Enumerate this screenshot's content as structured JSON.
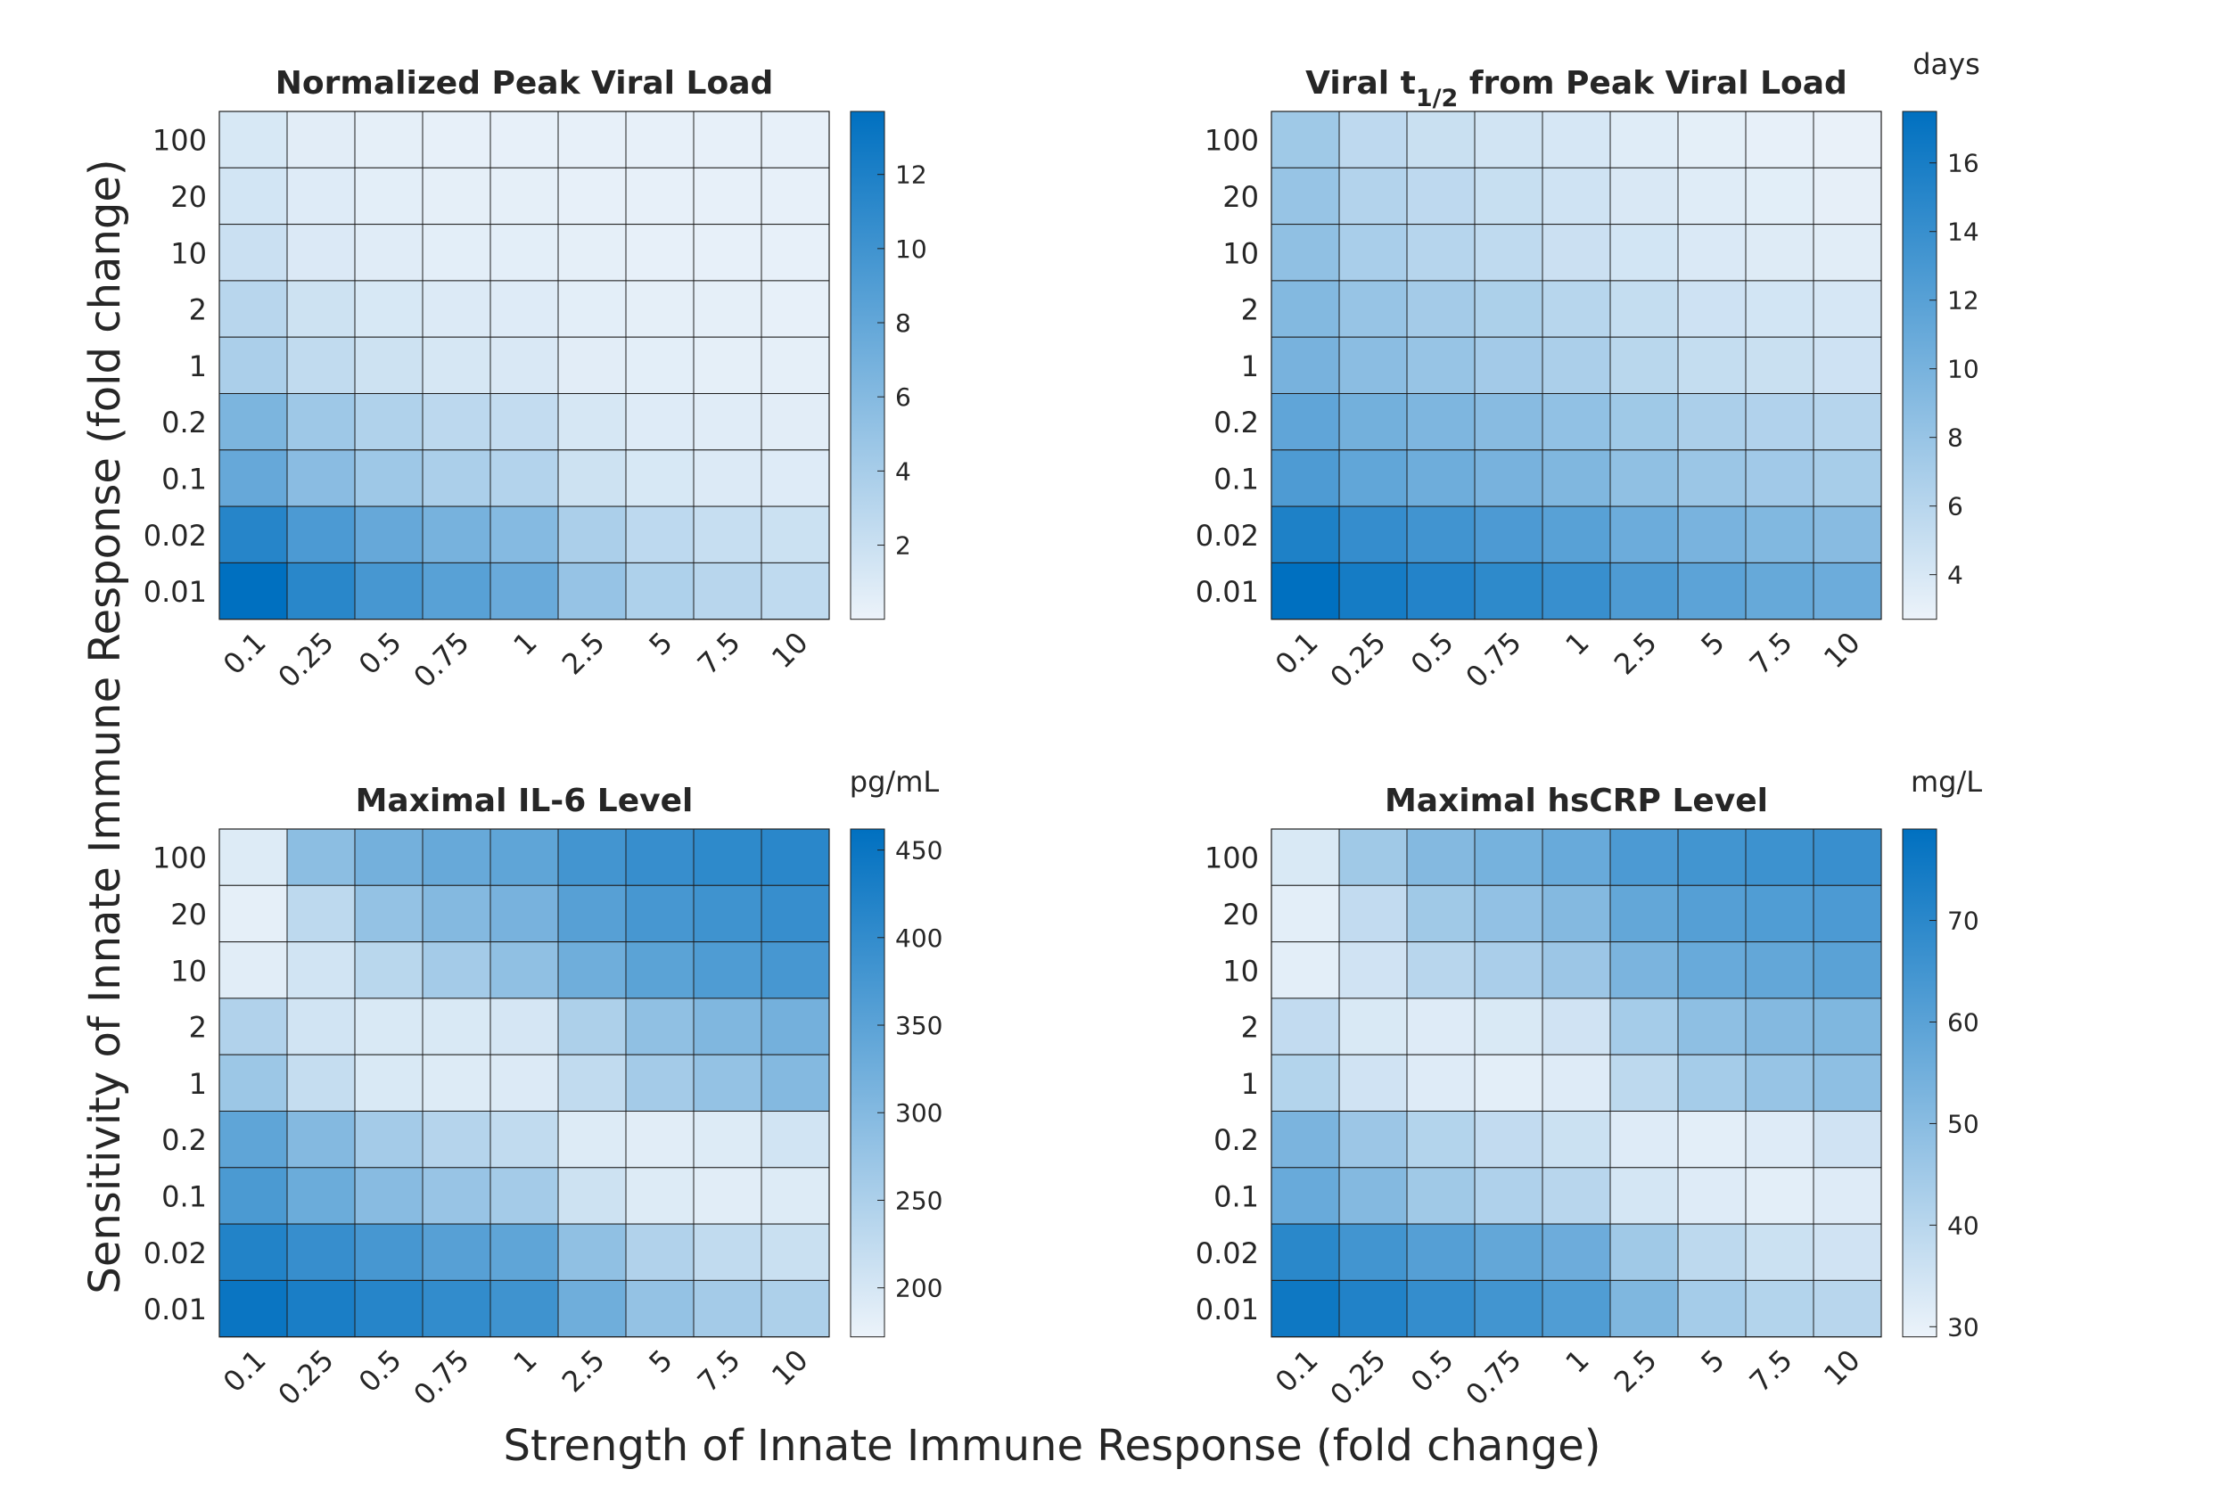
{
  "figure": {
    "ylabel": "Sensitivity of Innate Immune Response (fold change)",
    "xlabel": "Strength of Innate Immune Response (fold change)"
  },
  "chart_data": [
    {
      "type": "heatmap",
      "title": "Normalized Peak Viral Load",
      "title_sub": "",
      "title_after": "",
      "unit": "",
      "x_categories": [
        "0.1",
        "0.25",
        "0.5",
        "0.75",
        "1",
        "2.5",
        "5",
        "7.5",
        "10"
      ],
      "y_categories": [
        "100",
        "20",
        "10",
        "2",
        "1",
        "0.2",
        "0.1",
        "0.02",
        "0.01"
      ],
      "colorbar_range": [
        0,
        13.7
      ],
      "colorbar_ticks": [
        2,
        4,
        6,
        8,
        10,
        12
      ],
      "colormap": [
        "#ECF3FA",
        "#0070C0"
      ],
      "values": [
        [
          1.2,
          0.6,
          0.4,
          0.3,
          0.3,
          0.3,
          0.3,
          0.3,
          0.3
        ],
        [
          1.5,
          0.8,
          0.5,
          0.4,
          0.4,
          0.3,
          0.3,
          0.3,
          0.3
        ],
        [
          2.0,
          1.0,
          0.7,
          0.5,
          0.5,
          0.4,
          0.3,
          0.3,
          0.3
        ],
        [
          3.0,
          1.8,
          1.2,
          0.9,
          0.8,
          0.5,
          0.4,
          0.4,
          0.3
        ],
        [
          3.8,
          2.5,
          1.8,
          1.3,
          1.1,
          0.6,
          0.5,
          0.4,
          0.4
        ],
        [
          6.5,
          4.5,
          3.5,
          2.8,
          2.4,
          1.3,
          0.8,
          0.7,
          0.6
        ],
        [
          7.8,
          5.7,
          4.5,
          3.8,
          3.3,
          1.8,
          1.2,
          0.9,
          0.8
        ],
        [
          11.5,
          9.3,
          7.8,
          6.8,
          6.0,
          3.8,
          2.7,
          2.2,
          1.9
        ],
        [
          13.7,
          11.3,
          9.6,
          8.6,
          7.6,
          5.0,
          3.6,
          3.0,
          2.6
        ]
      ]
    },
    {
      "type": "heatmap",
      "title": "Viral t",
      "title_sub": "1/2",
      "title_after": " from Peak Viral Load",
      "unit": "days",
      "x_categories": [
        "0.1",
        "0.25",
        "0.5",
        "0.75",
        "1",
        "2.5",
        "5",
        "7.5",
        "10"
      ],
      "y_categories": [
        "100",
        "20",
        "10",
        "2",
        "1",
        "0.2",
        "0.1",
        "0.02",
        "0.01"
      ],
      "colorbar_range": [
        2.7,
        17.5
      ],
      "colorbar_ticks": [
        4,
        6,
        8,
        10,
        12,
        14,
        16
      ],
      "colormap": [
        "#ECF3FA",
        "#0070C0"
      ],
      "values": [
        [
          7.5,
          5.6,
          4.9,
          4.4,
          4.1,
          3.5,
          3.2,
          3.0,
          2.9
        ],
        [
          8.0,
          6.3,
          5.6,
          5.0,
          4.5,
          3.9,
          3.5,
          3.3,
          3.1
        ],
        [
          8.5,
          6.9,
          6.1,
          5.5,
          4.8,
          4.3,
          3.8,
          3.6,
          3.4
        ],
        [
          9.3,
          8.0,
          7.2,
          6.7,
          6.0,
          5.2,
          4.6,
          4.3,
          4.1
        ],
        [
          10.0,
          8.8,
          8.0,
          7.3,
          6.8,
          5.9,
          5.2,
          4.9,
          4.6
        ],
        [
          11.5,
          10.3,
          9.6,
          9.0,
          8.4,
          7.5,
          6.8,
          6.4,
          6.1
        ],
        [
          12.6,
          11.4,
          10.6,
          10.0,
          9.5,
          8.5,
          7.8,
          7.4,
          7.0
        ],
        [
          15.6,
          14.2,
          13.4,
          12.7,
          12.0,
          10.7,
          9.9,
          9.4,
          9.0
        ],
        [
          17.5,
          16.2,
          15.3,
          14.6,
          14.0,
          12.6,
          11.7,
          11.1,
          10.7
        ]
      ]
    },
    {
      "type": "heatmap",
      "title": "Maximal IL-6 Level",
      "title_sub": "",
      "title_after": "",
      "unit": "pg/mL",
      "x_categories": [
        "0.1",
        "0.25",
        "0.5",
        "0.75",
        "1",
        "2.5",
        "5",
        "7.5",
        "10"
      ],
      "y_categories": [
        "100",
        "20",
        "10",
        "2",
        "1",
        "0.2",
        "0.1",
        "0.02",
        "0.01"
      ],
      "colorbar_range": [
        172,
        462
      ],
      "colorbar_ticks": [
        200,
        250,
        300,
        350,
        400,
        450
      ],
      "colormap": [
        "#ECF3FA",
        "#0070C0"
      ],
      "values": [
        [
          190,
          290,
          320,
          335,
          345,
          380,
          395,
          405,
          410
        ],
        [
          180,
          230,
          280,
          300,
          315,
          355,
          375,
          385,
          395
        ],
        [
          185,
          205,
          235,
          260,
          285,
          325,
          350,
          365,
          375
        ],
        [
          245,
          205,
          195,
          195,
          200,
          250,
          285,
          305,
          320
        ],
        [
          270,
          220,
          195,
          190,
          192,
          225,
          260,
          280,
          300
        ],
        [
          345,
          300,
          260,
          240,
          225,
          190,
          185,
          190,
          205
        ],
        [
          370,
          330,
          295,
          275,
          260,
          210,
          190,
          185,
          190
        ],
        [
          420,
          395,
          375,
          355,
          345,
          285,
          245,
          225,
          215
        ],
        [
          450,
          430,
          415,
          400,
          385,
          325,
          280,
          260,
          250
        ]
      ]
    },
    {
      "type": "heatmap",
      "title": "Maximal hsCRP Level",
      "title_sub": "",
      "title_after": "",
      "unit": "mg/L",
      "x_categories": [
        "0.1",
        "0.25",
        "0.5",
        "0.75",
        "1",
        "2.5",
        "5",
        "7.5",
        "10"
      ],
      "y_categories": [
        "100",
        "20",
        "10",
        "2",
        "1",
        "0.2",
        "0.1",
        "0.02",
        "0.01"
      ],
      "colorbar_range": [
        29,
        79
      ],
      "colorbar_ticks": [
        30,
        40,
        50,
        60,
        70
      ],
      "colormap": [
        "#ECF3FA",
        "#0070C0"
      ],
      "values": [
        [
          33,
          45,
          51,
          54,
          57,
          63,
          65,
          66,
          67
        ],
        [
          31,
          38,
          45,
          48,
          51,
          58,
          61,
          62,
          63
        ],
        [
          31,
          35,
          40,
          43,
          46,
          53,
          57,
          58,
          60
        ],
        [
          38,
          33,
          32,
          33,
          35,
          44,
          49,
          51,
          52
        ],
        [
          41,
          35,
          32,
          31,
          32,
          39,
          44,
          47,
          49
        ],
        [
          53,
          46,
          41,
          38,
          36,
          32,
          31,
          32,
          35
        ],
        [
          57,
          51,
          45,
          42,
          40,
          34,
          32,
          31,
          32
        ],
        [
          70,
          65,
          61,
          58,
          56,
          45,
          39,
          36,
          35
        ],
        [
          76,
          72,
          68,
          65,
          62,
          52,
          44,
          41,
          40
        ]
      ]
    }
  ]
}
